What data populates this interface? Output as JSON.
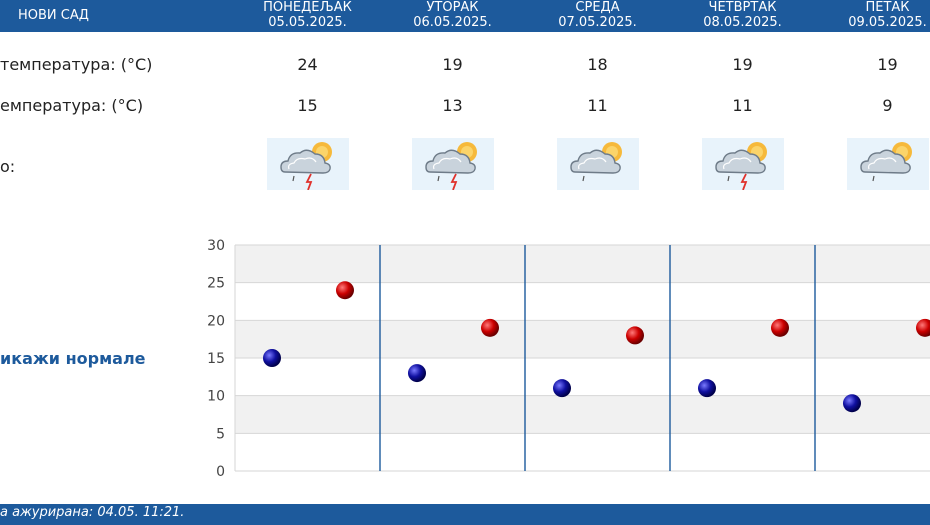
{
  "city": "НОВИ САД",
  "rows": {
    "max_label": "температура: (°C)",
    "min_label": "емпература: (°C)",
    "icon_label": "о:"
  },
  "days": [
    {
      "name": "ПОНЕДЕЉАК",
      "date": "05.05.2025.",
      "max": "24",
      "min": "15",
      "icon": "cloud-rain-thunder-sun-icon"
    },
    {
      "name": "УТОРАК",
      "date": "06.05.2025.",
      "max": "19",
      "min": "13",
      "icon": "cloud-rain-thunder-sun-icon"
    },
    {
      "name": "СРЕДА",
      "date": "07.05.2025.",
      "max": "18",
      "min": "11",
      "icon": "cloud-rain-sun-icon"
    },
    {
      "name": "ЧЕТВРТАК",
      "date": "08.05.2025.",
      "max": "19",
      "min": "11",
      "icon": "cloud-rain-thunder-sun-icon"
    },
    {
      "name": "ПЕТАК",
      "date": "09.05.2025.",
      "max": "19",
      "min": "9",
      "icon": "cloud-rain-sun-icon"
    }
  ],
  "normals_link": "икажи нормале",
  "footer": "а ажурирана:  04.05.  11:21.",
  "colors": {
    "header": "#1d5a9c",
    "max_dot": "#cc0000",
    "min_dot": "#1010a0"
  },
  "chart_data": {
    "type": "scatter",
    "categories": [
      "05.05.2025.",
      "06.05.2025.",
      "07.05.2025.",
      "08.05.2025.",
      "09.05.2025."
    ],
    "series": [
      {
        "values": [
          24,
          19,
          18,
          19,
          19
        ]
      },
      {
        "values": [
          15,
          13,
          11,
          11,
          9
        ]
      }
    ],
    "ylim": [
      0,
      30
    ],
    "yticks": [
      0,
      5,
      10,
      15,
      20,
      25,
      30
    ],
    "grid": true
  }
}
